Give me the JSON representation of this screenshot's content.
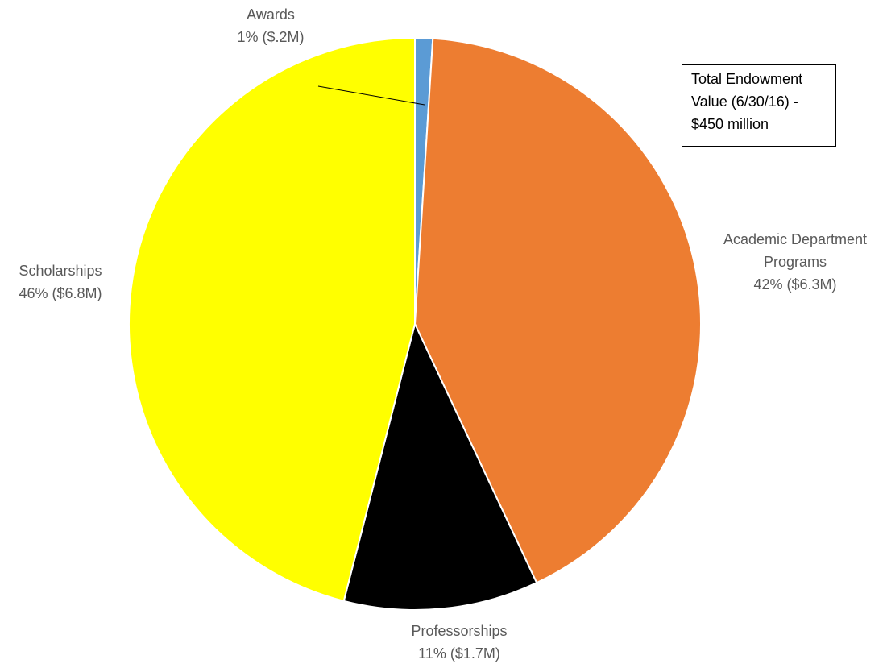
{
  "chart_data": {
    "type": "pie",
    "start_angle_deg": 0,
    "direction": "clockwise",
    "slices": [
      {
        "name": "Awards",
        "percent_label": "1% ($.2M)",
        "value": 0.2,
        "percent": 1,
        "color": "#5B9BD5"
      },
      {
        "name": "Academic Department Programs",
        "name_lines": [
          "Academic Department",
          "Programs"
        ],
        "percent_label": "42% ($6.3M)",
        "value": 6.3,
        "percent": 42,
        "color": "#ED7D31"
      },
      {
        "name": "Professorships",
        "percent_label": "11% ($1.7M)",
        "value": 1.7,
        "percent": 11,
        "color": "#000000"
      },
      {
        "name": "Scholarships",
        "percent_label": "46% ($6.8M)",
        "value": 6.8,
        "percent": 46,
        "color": "#FFFF00"
      }
    ],
    "annotation": "Total Endowment\nValue (6/30/16)  -\n$450 million"
  }
}
